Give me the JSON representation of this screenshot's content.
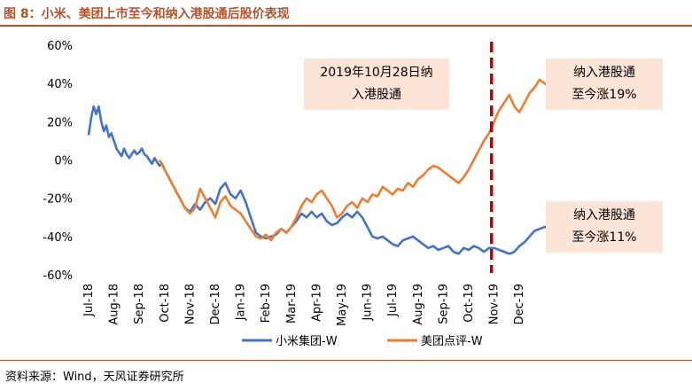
{
  "title": "图 8：小米、美团上市至今和纳入港股通后股价表现",
  "source": "资料来源：Wind，天风证券研究所",
  "colors": {
    "xiaomi": "#4472c4",
    "meituan": "#ed7d31",
    "marker_line": "#c00000",
    "annotation_bg": "#fce4d6",
    "accent": "#b3532a"
  },
  "chart_data": {
    "type": "line",
    "x_ticks": [
      "Jul-18",
      "Aug-18",
      "Sep-18",
      "Oct-18",
      "Nov-18",
      "Dec-18",
      "Jan-19",
      "Feb-19",
      "Mar-19",
      "Apr-19",
      "May-19",
      "Jun-19",
      "Jul-19",
      "Aug-19",
      "Sep-19",
      "Oct-19",
      "Nov-19",
      "Dec-19"
    ],
    "y_ticks": [
      "60%",
      "40%",
      "20%",
      "0%",
      "-20%",
      "-40%",
      "-60%"
    ],
    "ylim": [
      -60,
      60
    ],
    "x_unit": "month index (0 = Jul-18)",
    "xlim": [
      0,
      17.6
    ],
    "grid": false,
    "legend_position": "bottom",
    "legend": [
      "小米集团-W",
      "美团点评-W"
    ],
    "marker": {
      "x": 15.9,
      "label": "2019年10月28日纳入港股通"
    },
    "annotations": [
      {
        "lines": [
          "2019年10月28日纳",
          "入港股通"
        ],
        "anchor": "top-middle"
      },
      {
        "lines": [
          "纳入港股通",
          "至今涨19%"
        ],
        "anchor": "top-right"
      },
      {
        "lines": [
          "纳入港股通",
          "至今涨11%"
        ],
        "anchor": "lower-right"
      }
    ],
    "series": [
      {
        "name": "小米集团-W",
        "key": "xiaomi",
        "points": [
          [
            0.0,
            13
          ],
          [
            0.1,
            22
          ],
          [
            0.2,
            28
          ],
          [
            0.3,
            24
          ],
          [
            0.4,
            28
          ],
          [
            0.5,
            20
          ],
          [
            0.6,
            15
          ],
          [
            0.7,
            18
          ],
          [
            0.8,
            12
          ],
          [
            0.9,
            14
          ],
          [
            1.0,
            10
          ],
          [
            1.1,
            6
          ],
          [
            1.2,
            4
          ],
          [
            1.3,
            2
          ],
          [
            1.4,
            6
          ],
          [
            1.5,
            3
          ],
          [
            1.6,
            1
          ],
          [
            1.7,
            3
          ],
          [
            1.8,
            5
          ],
          [
            1.9,
            3
          ],
          [
            2.0,
            4
          ],
          [
            2.1,
            6
          ],
          [
            2.2,
            3
          ],
          [
            2.3,
            2
          ],
          [
            2.4,
            0
          ],
          [
            2.5,
            -2
          ],
          [
            2.6,
            1
          ],
          [
            2.7,
            -1
          ],
          [
            2.8,
            -3
          ],
          [
            2.9,
            -2
          ],
          [
            3.0,
            -5
          ],
          [
            3.2,
            -10
          ],
          [
            3.4,
            -15
          ],
          [
            3.6,
            -20
          ],
          [
            3.8,
            -25
          ],
          [
            4.0,
            -27
          ],
          [
            4.2,
            -23
          ],
          [
            4.4,
            -26
          ],
          [
            4.6,
            -22
          ],
          [
            4.8,
            -20
          ],
          [
            5.0,
            -23
          ],
          [
            5.2,
            -15
          ],
          [
            5.4,
            -12
          ],
          [
            5.6,
            -18
          ],
          [
            5.8,
            -20
          ],
          [
            6.0,
            -16
          ],
          [
            6.2,
            -22
          ],
          [
            6.4,
            -30
          ],
          [
            6.6,
            -38
          ],
          [
            6.8,
            -40
          ],
          [
            7.0,
            -41
          ],
          [
            7.2,
            -40
          ],
          [
            7.4,
            -39
          ],
          [
            7.6,
            -36
          ],
          [
            7.8,
            -38
          ],
          [
            8.0,
            -35
          ],
          [
            8.2,
            -32
          ],
          [
            8.4,
            -28
          ],
          [
            8.6,
            -30
          ],
          [
            8.8,
            -27
          ],
          [
            9.0,
            -30
          ],
          [
            9.2,
            -28
          ],
          [
            9.4,
            -32
          ],
          [
            9.6,
            -34
          ],
          [
            9.8,
            -33
          ],
          [
            10.0,
            -30
          ],
          [
            10.2,
            -28
          ],
          [
            10.4,
            -30
          ],
          [
            10.6,
            -27
          ],
          [
            10.8,
            -30
          ],
          [
            11.0,
            -35
          ],
          [
            11.2,
            -40
          ],
          [
            11.4,
            -41
          ],
          [
            11.6,
            -40
          ],
          [
            11.8,
            -42
          ],
          [
            12.0,
            -44
          ],
          [
            12.2,
            -45
          ],
          [
            12.4,
            -42
          ],
          [
            12.6,
            -41
          ],
          [
            12.8,
            -40
          ],
          [
            13.0,
            -42
          ],
          [
            13.2,
            -44
          ],
          [
            13.4,
            -46
          ],
          [
            13.6,
            -45
          ],
          [
            13.8,
            -47
          ],
          [
            14.0,
            -46
          ],
          [
            14.2,
            -45
          ],
          [
            14.4,
            -48
          ],
          [
            14.6,
            -49
          ],
          [
            14.8,
            -46
          ],
          [
            15.0,
            -47
          ],
          [
            15.2,
            -45
          ],
          [
            15.4,
            -46
          ],
          [
            15.6,
            -48
          ],
          [
            15.8,
            -46
          ],
          [
            16.0,
            -46
          ],
          [
            16.2,
            -47
          ],
          [
            16.4,
            -48
          ],
          [
            16.6,
            -49
          ],
          [
            16.8,
            -48
          ],
          [
            17.0,
            -45
          ],
          [
            17.2,
            -43
          ],
          [
            17.4,
            -40
          ],
          [
            17.6,
            -37
          ],
          [
            17.8,
            -36
          ],
          [
            18.0,
            -35
          ],
          [
            18.2,
            -36
          ],
          [
            18.4,
            -34
          ]
        ]
      },
      {
        "name": "美团点评-W",
        "key": "meituan",
        "points": [
          [
            2.8,
            0
          ],
          [
            3.0,
            -5
          ],
          [
            3.2,
            -10
          ],
          [
            3.4,
            -15
          ],
          [
            3.6,
            -20
          ],
          [
            3.8,
            -25
          ],
          [
            4.0,
            -28
          ],
          [
            4.2,
            -25
          ],
          [
            4.4,
            -15
          ],
          [
            4.6,
            -20
          ],
          [
            4.8,
            -25
          ],
          [
            5.0,
            -30
          ],
          [
            5.2,
            -22
          ],
          [
            5.4,
            -19
          ],
          [
            5.6,
            -24
          ],
          [
            5.8,
            -26
          ],
          [
            6.0,
            -28
          ],
          [
            6.2,
            -32
          ],
          [
            6.4,
            -36
          ],
          [
            6.6,
            -40
          ],
          [
            6.8,
            -41
          ],
          [
            7.0,
            -39
          ],
          [
            7.2,
            -42
          ],
          [
            7.4,
            -38
          ],
          [
            7.6,
            -36
          ],
          [
            7.8,
            -38
          ],
          [
            8.0,
            -35
          ],
          [
            8.2,
            -30
          ],
          [
            8.4,
            -24
          ],
          [
            8.6,
            -20
          ],
          [
            8.8,
            -22
          ],
          [
            9.0,
            -18
          ],
          [
            9.2,
            -16
          ],
          [
            9.4,
            -20
          ],
          [
            9.6,
            -24
          ],
          [
            9.8,
            -30
          ],
          [
            10.0,
            -28
          ],
          [
            10.2,
            -24
          ],
          [
            10.4,
            -22
          ],
          [
            10.6,
            -25
          ],
          [
            10.8,
            -20
          ],
          [
            11.0,
            -22
          ],
          [
            11.2,
            -18
          ],
          [
            11.4,
            -19
          ],
          [
            11.6,
            -14
          ],
          [
            11.8,
            -16
          ],
          [
            12.0,
            -18
          ],
          [
            12.2,
            -15
          ],
          [
            12.4,
            -16
          ],
          [
            12.6,
            -12
          ],
          [
            12.8,
            -14
          ],
          [
            13.0,
            -10
          ],
          [
            13.2,
            -8
          ],
          [
            13.4,
            -5
          ],
          [
            13.6,
            -3
          ],
          [
            13.8,
            -4
          ],
          [
            14.0,
            -6
          ],
          [
            14.2,
            -8
          ],
          [
            14.4,
            -10
          ],
          [
            14.6,
            -12
          ],
          [
            14.8,
            -9
          ],
          [
            15.0,
            -5
          ],
          [
            15.2,
            0
          ],
          [
            15.4,
            5
          ],
          [
            15.6,
            10
          ],
          [
            15.8,
            14
          ],
          [
            16.0,
            20
          ],
          [
            16.2,
            26
          ],
          [
            16.4,
            30
          ],
          [
            16.6,
            34
          ],
          [
            16.8,
            28
          ],
          [
            17.0,
            25
          ],
          [
            17.2,
            30
          ],
          [
            17.4,
            35
          ],
          [
            17.6,
            38
          ],
          [
            17.8,
            42
          ],
          [
            18.0,
            40
          ],
          [
            18.2,
            38
          ],
          [
            18.4,
            41
          ]
        ]
      }
    ]
  }
}
